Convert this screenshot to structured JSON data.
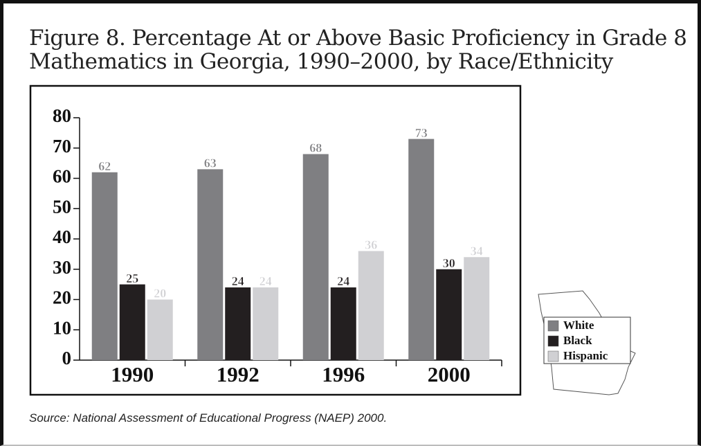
{
  "chart_data": {
    "type": "bar",
    "title": "Figure 8. Percentage At or Above Basic Proficiency in Grade 8 Mathematics in Georgia, 1990–2000, by Race/Ethnicity",
    "source": "Source: National Assessment of Educational Progress (NAEP) 2000.",
    "categories": [
      "1990",
      "1992",
      "1996",
      "2000"
    ],
    "series": [
      {
        "name": "White",
        "color": "#7f7f82",
        "values": [
          62,
          63,
          68,
          73
        ]
      },
      {
        "name": "Black",
        "color": "#231f20",
        "values": [
          25,
          24,
          24,
          30
        ]
      },
      {
        "name": "Hispanic",
        "color": "#d0d0d3",
        "values": [
          20,
          24,
          36,
          34
        ]
      }
    ],
    "ylim": [
      0,
      80
    ],
    "yticks": [
      0,
      10,
      20,
      30,
      40,
      50,
      60,
      70,
      80
    ]
  }
}
